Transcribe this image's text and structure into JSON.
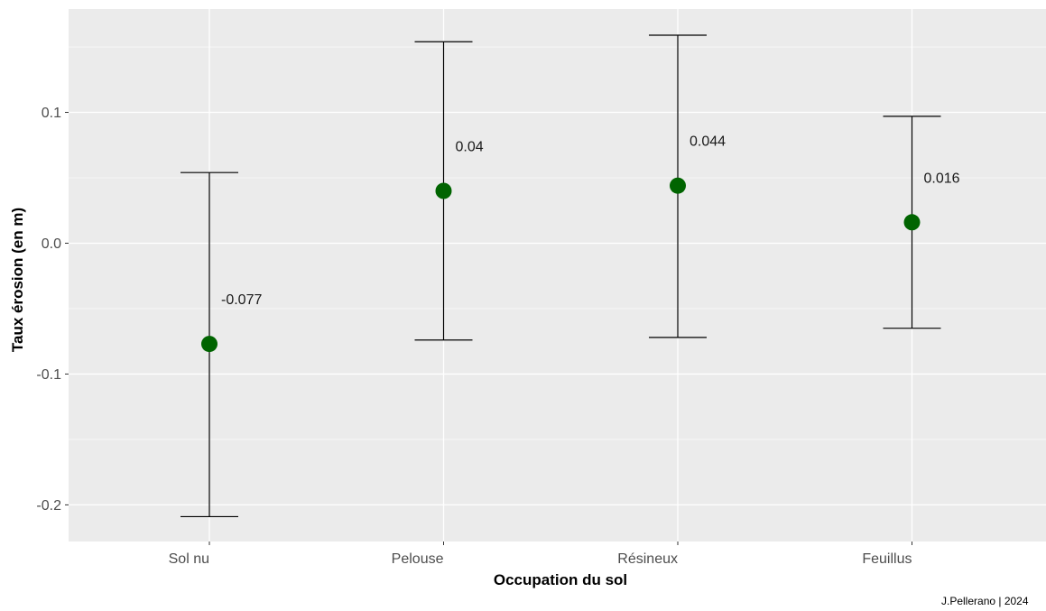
{
  "chart_data": {
    "type": "scatter",
    "subtype": "errorbar",
    "title": "",
    "xlabel": "Occupation du sol",
    "ylabel": "Taux érosion (en m)",
    "categories": [
      "Sol nu",
      "Pelouse",
      "Résineux",
      "Feuillus"
    ],
    "values": [
      -0.077,
      0.04,
      0.044,
      0.016
    ],
    "value_labels": [
      "-0.077",
      "0.04",
      "0.044",
      "0.016"
    ],
    "error_low": [
      -0.209,
      -0.074,
      -0.072,
      -0.065
    ],
    "error_high": [
      0.054,
      0.154,
      0.159,
      0.097
    ],
    "ylim": [
      -0.228,
      0.179
    ],
    "yticks": [
      -0.2,
      -0.1,
      0.0,
      0.1
    ],
    "ytick_labels": [
      "-0.2",
      "-0.1",
      "0.0",
      "0.1"
    ],
    "grid": true,
    "colors": {
      "point": "#006400",
      "panel_background": "#ebebeb",
      "gridline": "#ffffff",
      "errorbar": "#000000"
    },
    "caption": "J.Pellerano | 2024"
  }
}
